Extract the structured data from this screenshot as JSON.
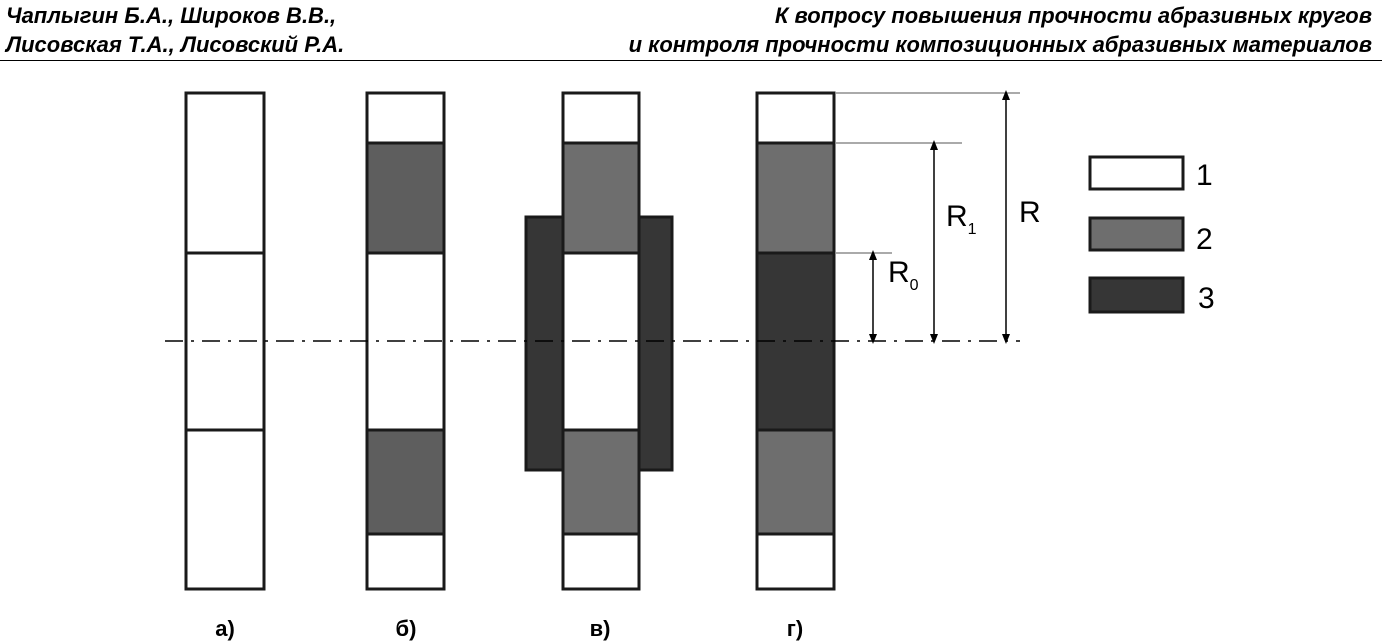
{
  "header": {
    "authors_line1": "Чаплыгин Б.А., Широков В.В.,",
    "authors_line2": "Лисовская Т.А., Лисовский Р.А.",
    "title_line1": "К вопросу повышения прочности абразивных кругов",
    "title_line2": "и контроля прочности композиционных абразивных материалов"
  },
  "figure": {
    "colors": {
      "material_1": "#ffffff",
      "material_2": "#6e6e6e",
      "material_2_b": "#5e5e5e",
      "material_3": "#363636"
    },
    "panel_labels": {
      "a": "а)",
      "b": "б)",
      "v": "в)",
      "g": "г)"
    },
    "dimensions": {
      "R": "R",
      "R1_base": "R",
      "R1_sub": "1",
      "R0_base": "R",
      "R0_sub": "0"
    },
    "legend": [
      {
        "key": "1",
        "material": "material_1"
      },
      {
        "key": "2",
        "material": "material_2"
      },
      {
        "key": "3",
        "material": "material_3"
      }
    ]
  }
}
